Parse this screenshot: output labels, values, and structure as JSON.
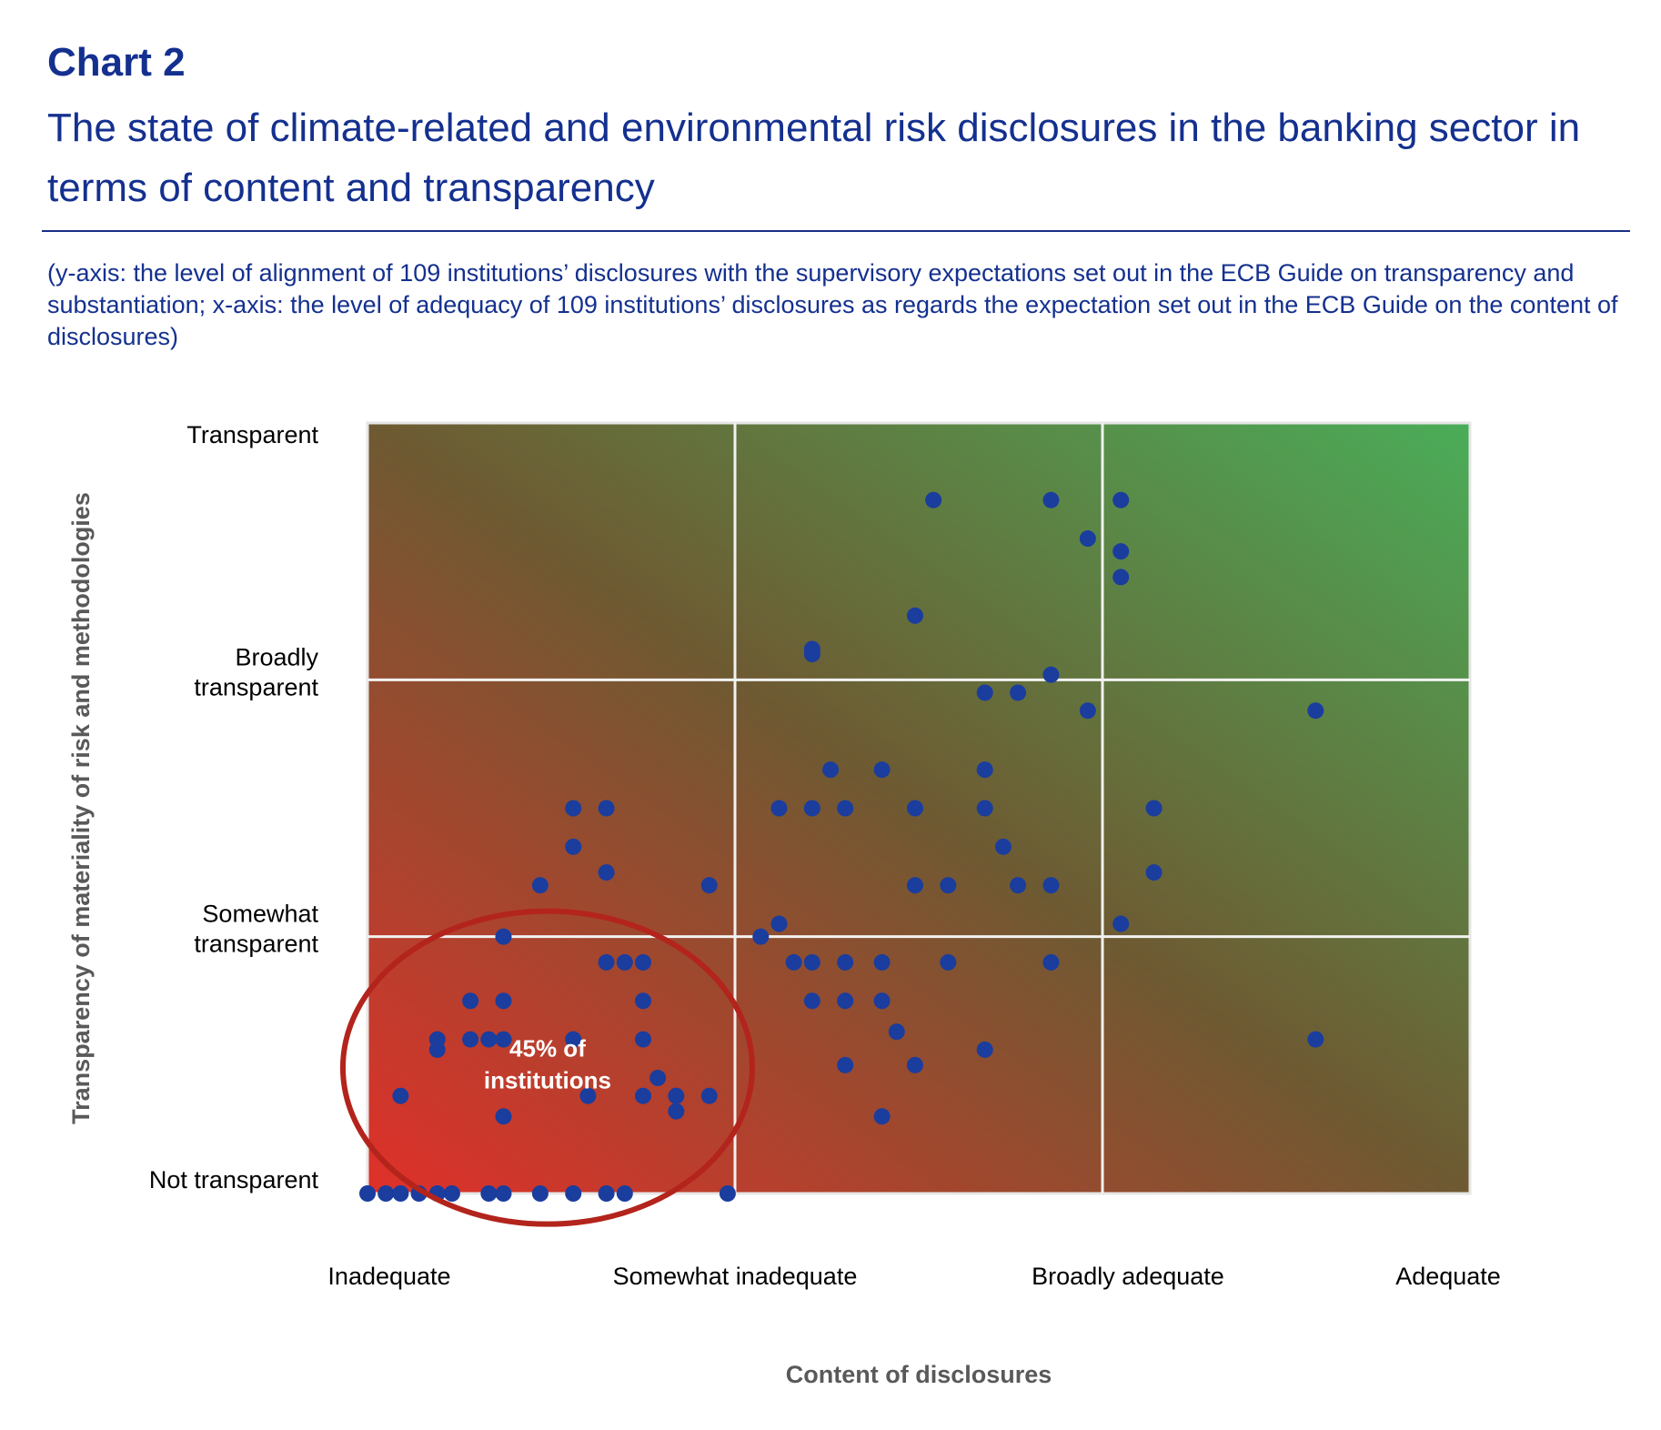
{
  "header": {
    "label": "Chart 2",
    "title": "The state of climate-related and environmental risk disclosures in the banking sector in terms of content and transparency",
    "subtitle": "(y-axis: the level of alignment of 109 institutions’ disclosures with the supervisory expectations set out in the ECB Guide on transparency and substantiation; x-axis: the level of adequacy of 109 institutions’ disclosures as regards the expectation set out in the ECB Guide on the content of disclosures)"
  },
  "colors": {
    "header_text": "#14308f",
    "point": "#1a3d9e",
    "ellipse": "#b3241c",
    "grad_low": "#e0302a",
    "grad_mid": "#6e5a32",
    "grad_high": "#4aad58",
    "grid": "#f2f2f2"
  },
  "chart_data": {
    "type": "scatter",
    "xlabel": "Content of disclosures",
    "ylabel": "Transparency of materiality of risk and methodologies",
    "x_categories": [
      "Inadequate",
      "Somewhat inadequate",
      "Broadly adequate",
      "Adequate"
    ],
    "y_categories": [
      "Not transparent",
      "Somewhat transparent",
      "Broadly transparent",
      "Transparent"
    ],
    "xlim": [
      0,
      3
    ],
    "ylim": [
      0,
      3
    ],
    "background": "gradient red (bottom-left) to green (top-right)",
    "grid": true,
    "annotation": {
      "text_line1": "45% of",
      "text_line2": "institutions",
      "shape": "ellipse around bottom-left cluster",
      "center": [
        0.49,
        0.49
      ]
    },
    "points": [
      {
        "x": 0.0,
        "y": 0.0
      },
      {
        "x": 0.05,
        "y": 0.0
      },
      {
        "x": 0.09,
        "y": 0.0
      },
      {
        "x": 0.14,
        "y": 0.0
      },
      {
        "x": 0.19,
        "y": 0.0
      },
      {
        "x": 0.23,
        "y": 0.0
      },
      {
        "x": 0.33,
        "y": 0.0
      },
      {
        "x": 0.37,
        "y": 0.0
      },
      {
        "x": 0.47,
        "y": 0.0
      },
      {
        "x": 0.56,
        "y": 0.0
      },
      {
        "x": 0.65,
        "y": 0.0
      },
      {
        "x": 0.7,
        "y": 0.0
      },
      {
        "x": 0.98,
        "y": 0.0
      },
      {
        "x": 0.09,
        "y": 0.38
      },
      {
        "x": 0.37,
        "y": 0.3
      },
      {
        "x": 0.6,
        "y": 0.38
      },
      {
        "x": 0.75,
        "y": 0.38
      },
      {
        "x": 0.84,
        "y": 0.38
      },
      {
        "x": 0.93,
        "y": 0.38
      },
      {
        "x": 0.84,
        "y": 0.32
      },
      {
        "x": 0.79,
        "y": 0.45
      },
      {
        "x": 0.75,
        "y": 0.6
      },
      {
        "x": 0.56,
        "y": 0.6
      },
      {
        "x": 0.19,
        "y": 0.56
      },
      {
        "x": 0.19,
        "y": 0.6
      },
      {
        "x": 0.28,
        "y": 0.6
      },
      {
        "x": 0.33,
        "y": 0.6
      },
      {
        "x": 0.37,
        "y": 0.6
      },
      {
        "x": 0.28,
        "y": 0.75
      },
      {
        "x": 0.37,
        "y": 0.75
      },
      {
        "x": 0.75,
        "y": 0.75
      },
      {
        "x": 0.65,
        "y": 0.9
      },
      {
        "x": 0.7,
        "y": 0.9
      },
      {
        "x": 0.75,
        "y": 0.9
      },
      {
        "x": 0.37,
        "y": 1.0
      },
      {
        "x": 0.47,
        "y": 1.2
      },
      {
        "x": 0.93,
        "y": 1.2
      },
      {
        "x": 0.65,
        "y": 1.25
      },
      {
        "x": 0.56,
        "y": 1.35
      },
      {
        "x": 0.56,
        "y": 1.5
      },
      {
        "x": 0.65,
        "y": 1.5
      },
      {
        "x": 1.07,
        "y": 1.0
      },
      {
        "x": 1.12,
        "y": 1.05
      },
      {
        "x": 1.16,
        "y": 0.9
      },
      {
        "x": 1.21,
        "y": 0.9
      },
      {
        "x": 1.3,
        "y": 0.9
      },
      {
        "x": 1.4,
        "y": 0.9
      },
      {
        "x": 1.58,
        "y": 0.9
      },
      {
        "x": 1.86,
        "y": 0.9
      },
      {
        "x": 1.21,
        "y": 0.75
      },
      {
        "x": 1.3,
        "y": 0.75
      },
      {
        "x": 1.4,
        "y": 0.75
      },
      {
        "x": 1.44,
        "y": 0.63
      },
      {
        "x": 1.68,
        "y": 0.56
      },
      {
        "x": 1.3,
        "y": 0.5
      },
      {
        "x": 1.49,
        "y": 0.5
      },
      {
        "x": 1.4,
        "y": 0.3
      },
      {
        "x": 1.49,
        "y": 1.2
      },
      {
        "x": 1.58,
        "y": 1.2
      },
      {
        "x": 1.77,
        "y": 1.2
      },
      {
        "x": 1.86,
        "y": 1.2
      },
      {
        "x": 1.73,
        "y": 1.35
      },
      {
        "x": 1.12,
        "y": 1.5
      },
      {
        "x": 1.21,
        "y": 1.5
      },
      {
        "x": 1.3,
        "y": 1.5
      },
      {
        "x": 1.49,
        "y": 1.5
      },
      {
        "x": 1.68,
        "y": 1.5
      },
      {
        "x": 1.26,
        "y": 1.65
      },
      {
        "x": 1.4,
        "y": 1.65
      },
      {
        "x": 1.68,
        "y": 1.65
      },
      {
        "x": 1.68,
        "y": 1.95
      },
      {
        "x": 1.77,
        "y": 1.95
      },
      {
        "x": 1.86,
        "y": 2.02
      },
      {
        "x": 1.96,
        "y": 1.88
      },
      {
        "x": 1.21,
        "y": 2.1
      },
      {
        "x": 1.21,
        "y": 2.12
      },
      {
        "x": 1.49,
        "y": 2.25
      },
      {
        "x": 1.54,
        "y": 2.7
      },
      {
        "x": 1.86,
        "y": 2.7
      },
      {
        "x": 1.96,
        "y": 2.55
      },
      {
        "x": 2.05,
        "y": 2.7
      },
      {
        "x": 2.05,
        "y": 2.5
      },
      {
        "x": 2.05,
        "y": 2.4
      },
      {
        "x": 2.05,
        "y": 1.05
      },
      {
        "x": 2.14,
        "y": 1.5
      },
      {
        "x": 2.14,
        "y": 1.25
      },
      {
        "x": 2.58,
        "y": 1.88
      },
      {
        "x": 2.58,
        "y": 0.6
      }
    ]
  }
}
